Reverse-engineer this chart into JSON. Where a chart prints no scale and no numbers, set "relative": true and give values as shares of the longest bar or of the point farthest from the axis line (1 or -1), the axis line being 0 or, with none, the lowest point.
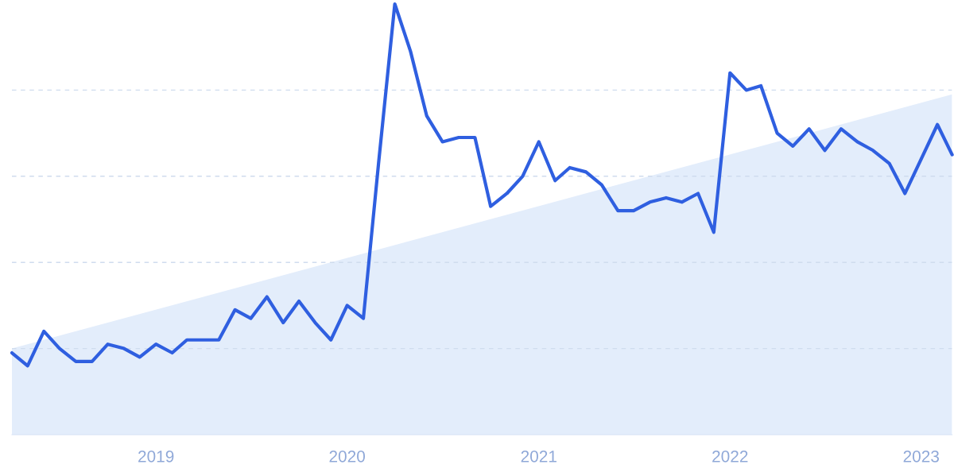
{
  "chart_data": {
    "type": "line",
    "relative": true,
    "grid": "y",
    "x": [
      "2018-04",
      "2018-05",
      "2018-06",
      "2018-07",
      "2018-08",
      "2018-09",
      "2018-10",
      "2018-11",
      "2018-12",
      "2019-01",
      "2019-02",
      "2019-03",
      "2019-04",
      "2019-05",
      "2019-06",
      "2019-07",
      "2019-08",
      "2019-09",
      "2019-10",
      "2019-11",
      "2019-12",
      "2020-01",
      "2020-02",
      "2020-03",
      "2020-04",
      "2020-05",
      "2020-06",
      "2020-07",
      "2020-08",
      "2020-09",
      "2020-10",
      "2020-11",
      "2020-12",
      "2021-01",
      "2021-02",
      "2021-03",
      "2021-04",
      "2021-05",
      "2021-06",
      "2021-07",
      "2021-08",
      "2021-09",
      "2021-10",
      "2021-11",
      "2021-12",
      "2022-01",
      "2022-02",
      "2022-03",
      "2022-04",
      "2022-05",
      "2022-06",
      "2022-07",
      "2022-08",
      "2022-09",
      "2022-10",
      "2022-11",
      "2022-12",
      "2023-01",
      "2023-02",
      "2023-03"
    ],
    "xlim": [
      "2018-04",
      "2023-03"
    ],
    "xticks": [
      {
        "value": "2019-01",
        "label": "2019"
      },
      {
        "value": "2020-01",
        "label": "2020"
      },
      {
        "value": "2021-01",
        "label": "2021"
      },
      {
        "value": "2022-01",
        "label": "2022"
      },
      {
        "value": "2023-01",
        "label": "2023"
      }
    ],
    "series": [
      {
        "type": "area",
        "color": "#e3edfb",
        "x": [
          "2018-04",
          "2023-03"
        ],
        "values": [
          0.2,
          0.79
        ]
      },
      {
        "type": "line",
        "color": "#2f5fe0",
        "values": [
          0.19,
          0.16,
          0.24,
          0.2,
          0.17,
          0.17,
          0.21,
          0.2,
          0.18,
          0.21,
          0.19,
          0.22,
          0.22,
          0.22,
          0.29,
          0.27,
          0.32,
          0.26,
          0.31,
          0.26,
          0.22,
          0.3,
          0.27,
          0.63,
          1,
          0.89,
          0.74,
          0.68,
          0.69,
          0.69,
          0.53,
          0.56,
          0.6,
          0.68,
          0.59,
          0.62,
          0.61,
          0.58,
          0.52,
          0.52,
          0.54,
          0.55,
          0.54,
          0.56,
          0.47,
          0.84,
          0.8,
          0.81,
          0.7,
          0.67,
          0.71,
          0.66,
          0.71,
          0.68,
          0.66,
          0.63,
          0.56,
          0.64,
          0.72,
          0.65
        ]
      }
    ]
  }
}
